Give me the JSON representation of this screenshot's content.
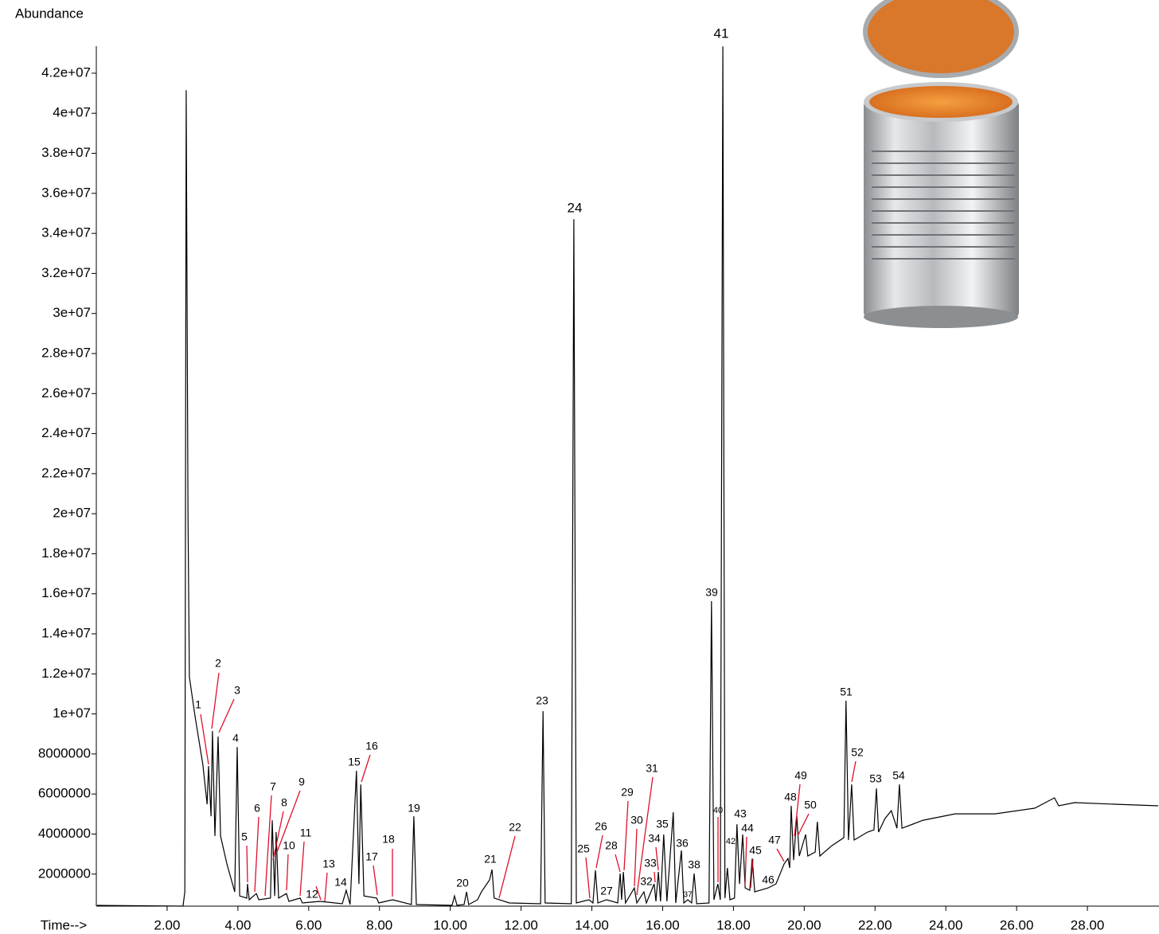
{
  "chart_data": {
    "type": "line",
    "y_axis_label": "Abundance",
    "x_axis_label": "Time-->",
    "color": "#000000",
    "xlim": [
      0,
      30
    ],
    "ylim": [
      400000,
      43350000
    ],
    "xticks": [
      {
        "value": 2,
        "label": "2.00"
      },
      {
        "value": 4,
        "label": "4.00"
      },
      {
        "value": 6,
        "label": "6.00"
      },
      {
        "value": 8,
        "label": "8.00"
      },
      {
        "value": 10,
        "label": "10.00"
      },
      {
        "value": 12,
        "label": "12.00"
      },
      {
        "value": 14,
        "label": "14.00"
      },
      {
        "value": 16,
        "label": "16.00"
      },
      {
        "value": 18,
        "label": "18.00"
      },
      {
        "value": 20,
        "label": "20.00"
      },
      {
        "value": 22,
        "label": "22.00"
      },
      {
        "value": 24,
        "label": "24.00"
      },
      {
        "value": 26,
        "label": "26.00"
      },
      {
        "value": 28,
        "label": "28.00"
      }
    ],
    "yticks": [
      2000000,
      4000000,
      6000000,
      8000000,
      {
        "value": 10000000,
        "label": "1e+07"
      },
      {
        "value": 12000000,
        "label": "1.2e+07"
      },
      {
        "value": 14000000,
        "label": "1.4e+07"
      },
      {
        "value": 16000000,
        "label": "1.6e+07"
      },
      {
        "value": 18000000,
        "label": "1.8e+07"
      },
      {
        "value": 20000000,
        "label": "2e+07"
      },
      {
        "value": 22000000,
        "label": "2.2e+07"
      },
      {
        "value": 24000000,
        "label": "2.4e+07"
      },
      {
        "value": 26000000,
        "label": "2.6e+07"
      },
      {
        "value": 28000000,
        "label": "2.8e+07"
      },
      {
        "value": 30000000,
        "label": "3e+07"
      },
      {
        "value": 32000000,
        "label": "3.2e+07"
      },
      {
        "value": 34000000,
        "label": "3.4e+07"
      },
      {
        "value": 36000000,
        "label": "3.6e+07"
      },
      {
        "value": 38000000,
        "label": "3.8e+07"
      },
      {
        "value": 40000000,
        "label": "4e+07"
      },
      {
        "value": 42000000,
        "label": "4.2e+07"
      }
    ],
    "x": [
      0.02,
      2.45,
      2.5,
      2.54,
      2.59,
      2.63,
      2.79,
      3.01,
      3.13,
      3.17,
      3.24,
      3.28,
      3.35,
      3.44,
      3.51,
      3.69,
      3.91,
      3.98,
      4.05,
      4.25,
      4.27,
      4.32,
      4.52,
      4.59,
      4.92,
      4.97,
      5.04,
      5.08,
      5.15,
      5.37,
      5.44,
      5.76,
      5.82,
      6.32,
      6.95,
      7.06,
      7.17,
      7.35,
      7.42,
      7.47,
      7.56,
      7.92,
      7.98,
      8.37,
      8.9,
      8.97,
      9.04,
      10.05,
      10.12,
      10.19,
      10.39,
      10.46,
      10.52,
      10.77,
      10.88,
      11.11,
      11.18,
      11.24,
      11.67,
      12.55,
      12.62,
      12.68,
      13.42,
      13.49,
      13.56,
      13.92,
      14.03,
      14.1,
      14.17,
      14.41,
      14.73,
      14.8,
      14.84,
      14.89,
      14.95,
      15.2,
      15.27,
      15.47,
      15.54,
      15.76,
      15.81,
      15.88,
      15.94,
      16.03,
      16.12,
      16.3,
      16.37,
      16.53,
      16.6,
      16.71,
      16.82,
      16.89,
      16.96,
      17.31,
      17.38,
      17.45,
      17.56,
      17.63,
      17.7,
      17.76,
      17.83,
      17.9,
      18.03,
      18.1,
      18.17,
      18.26,
      18.33,
      18.46,
      18.53,
      18.6,
      18.98,
      19.2,
      19.43,
      19.54,
      19.59,
      19.63,
      19.7,
      19.79,
      19.86,
      20.04,
      20.1,
      20.31,
      20.37,
      20.44,
      20.78,
      21.12,
      21.18,
      21.25,
      21.34,
      21.41,
      21.79,
      21.97,
      22.04,
      22.1,
      22.28,
      22.46,
      22.62,
      22.69,
      22.76,
      23.36,
      24.26,
      25.39,
      26.51,
      27.07,
      27.19,
      27.64,
      28.76,
      30.0
    ],
    "values": [
      440000,
      400000,
      1110000,
      41150000,
      19800000,
      11850000,
      9860000,
      7480000,
      5490000,
      7400000,
      4890000,
      9150000,
      3900000,
      8870000,
      3900000,
      2500000,
      1110000,
      8350000,
      910000,
      800000,
      1510000,
      720000,
      1030000,
      720000,
      800000,
      4690000,
      910000,
      4100000,
      800000,
      1030000,
      640000,
      800000,
      560000,
      640000,
      520000,
      1190000,
      480000,
      7160000,
      1510000,
      6480000,
      910000,
      800000,
      560000,
      720000,
      480000,
      4890000,
      480000,
      440000,
      910000,
      440000,
      480000,
      1110000,
      480000,
      720000,
      1110000,
      1710000,
      2230000,
      800000,
      560000,
      520000,
      10140000,
      560000,
      520000,
      34710000,
      560000,
      720000,
      560000,
      2190000,
      560000,
      720000,
      560000,
      2030000,
      720000,
      2110000,
      560000,
      1310000,
      560000,
      1110000,
      560000,
      1510000,
      640000,
      2110000,
      640000,
      3980000,
      640000,
      5090000,
      560000,
      3180000,
      560000,
      720000,
      560000,
      2030000,
      520000,
      560000,
      15630000,
      720000,
      1510000,
      720000,
      43340000,
      800000,
      2310000,
      720000,
      800000,
      4490000,
      1510000,
      3980000,
      1310000,
      1190000,
      2780000,
      1110000,
      1310000,
      1510000,
      2500000,
      2780000,
      2310000,
      5410000,
      2700000,
      4890000,
      2900000,
      3980000,
      2900000,
      3100000,
      4610000,
      2900000,
      3420000,
      3820000,
      10660000,
      3700000,
      6480000,
      3700000,
      4100000,
      4210000,
      6280000,
      4100000,
      4770000,
      5170000,
      4290000,
      6480000,
      4290000,
      4690000,
      5010000,
      5010000,
      5290000,
      5810000,
      5410000,
      5570000,
      5490000,
      5410000
    ],
    "peak_labels": [
      "1",
      "2",
      "3",
      "4",
      "5",
      "6",
      "7",
      "8",
      "9",
      "10",
      "11",
      "12",
      "13",
      "14",
      "15",
      "16",
      "17",
      "18",
      "19",
      "20",
      "21",
      "22",
      "23",
      "24",
      "25",
      "26",
      "27",
      "28",
      "29",
      "30",
      "31",
      "32",
      "33",
      "34",
      "35",
      "36",
      "37",
      "38",
      "39",
      "40",
      "41",
      "42",
      "43",
      "44",
      "45",
      "46",
      "47",
      "48",
      "49",
      "50",
      "51",
      "52",
      "53",
      "54"
    ]
  }
}
